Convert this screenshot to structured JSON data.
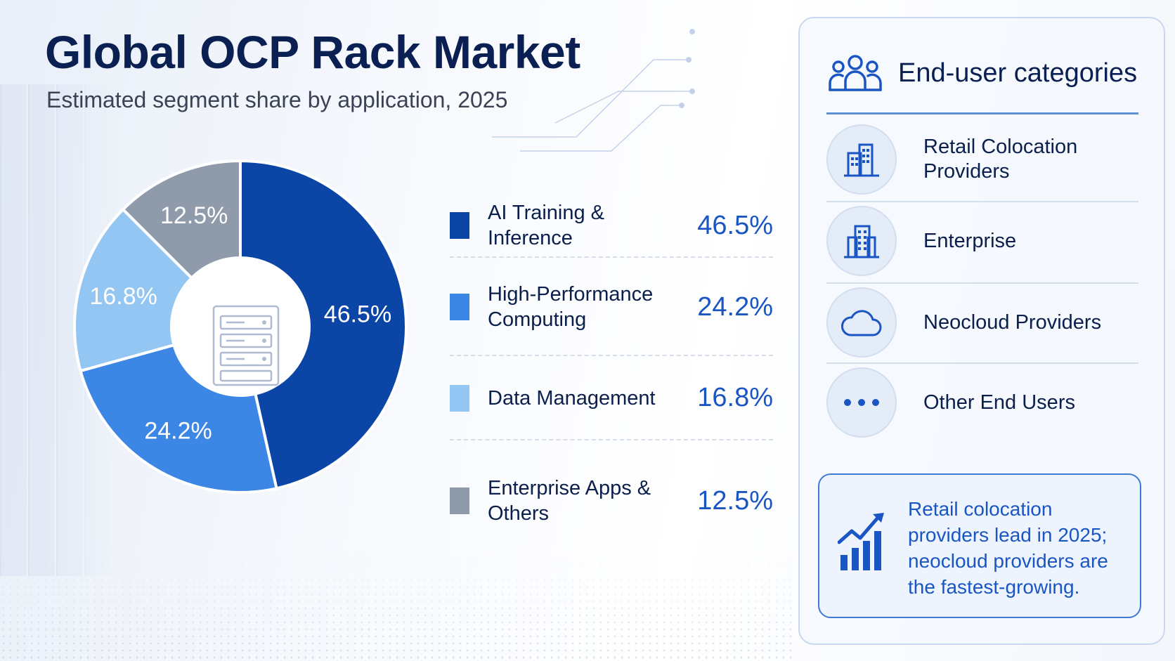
{
  "title": "Global OCP Rack Market",
  "subtitle": "Estimated segment share by application, 2025",
  "colors": {
    "ai": "#0b45a6",
    "hpc": "#3c86e6",
    "data": "#94c6f3",
    "enterprise": "#8f9aab",
    "accent": "#1a55c4"
  },
  "chart_data": {
    "type": "pie",
    "title": "Global OCP Rack Market",
    "subtitle": "Estimated segment share by application, 2025",
    "categories": [
      "AI Training & Inference",
      "High-Performance Computing",
      "Data Management",
      "Enterprise Apps & Others"
    ],
    "values": [
      46.5,
      24.2,
      16.8,
      12.5
    ],
    "value_labels": [
      "46.5%",
      "24.2%",
      "16.8%",
      "12.5%"
    ],
    "unit": "%",
    "donut": true,
    "legend_position": "right"
  },
  "legend": [
    {
      "label": "AI Training & Inference",
      "value": "46.5%",
      "color": "#0b45a6"
    },
    {
      "label": "High-Performance Computing",
      "value": "24.2%",
      "color": "#3c86e6"
    },
    {
      "label": "Data Management",
      "value": "16.8%",
      "color": "#94c6f3"
    },
    {
      "label": "Enterprise Apps & Others",
      "value": "12.5%",
      "color": "#8f9aab"
    }
  ],
  "panel": {
    "title": "End-user categories",
    "header_icon": "users-group-icon",
    "categories": [
      {
        "label": "Retail Colocation Providers",
        "icon": "office-buildings-icon"
      },
      {
        "label": "Enterprise",
        "icon": "office-building-icon"
      },
      {
        "label": "Neocloud Providers",
        "icon": "cloud-icon"
      },
      {
        "label": "Other End Users",
        "icon": "more-dots-icon"
      }
    ],
    "insight": {
      "icon": "growth-chart-icon",
      "text": "Retail colocation providers lead in 2025; neocloud providers are the fastest-growing."
    }
  }
}
